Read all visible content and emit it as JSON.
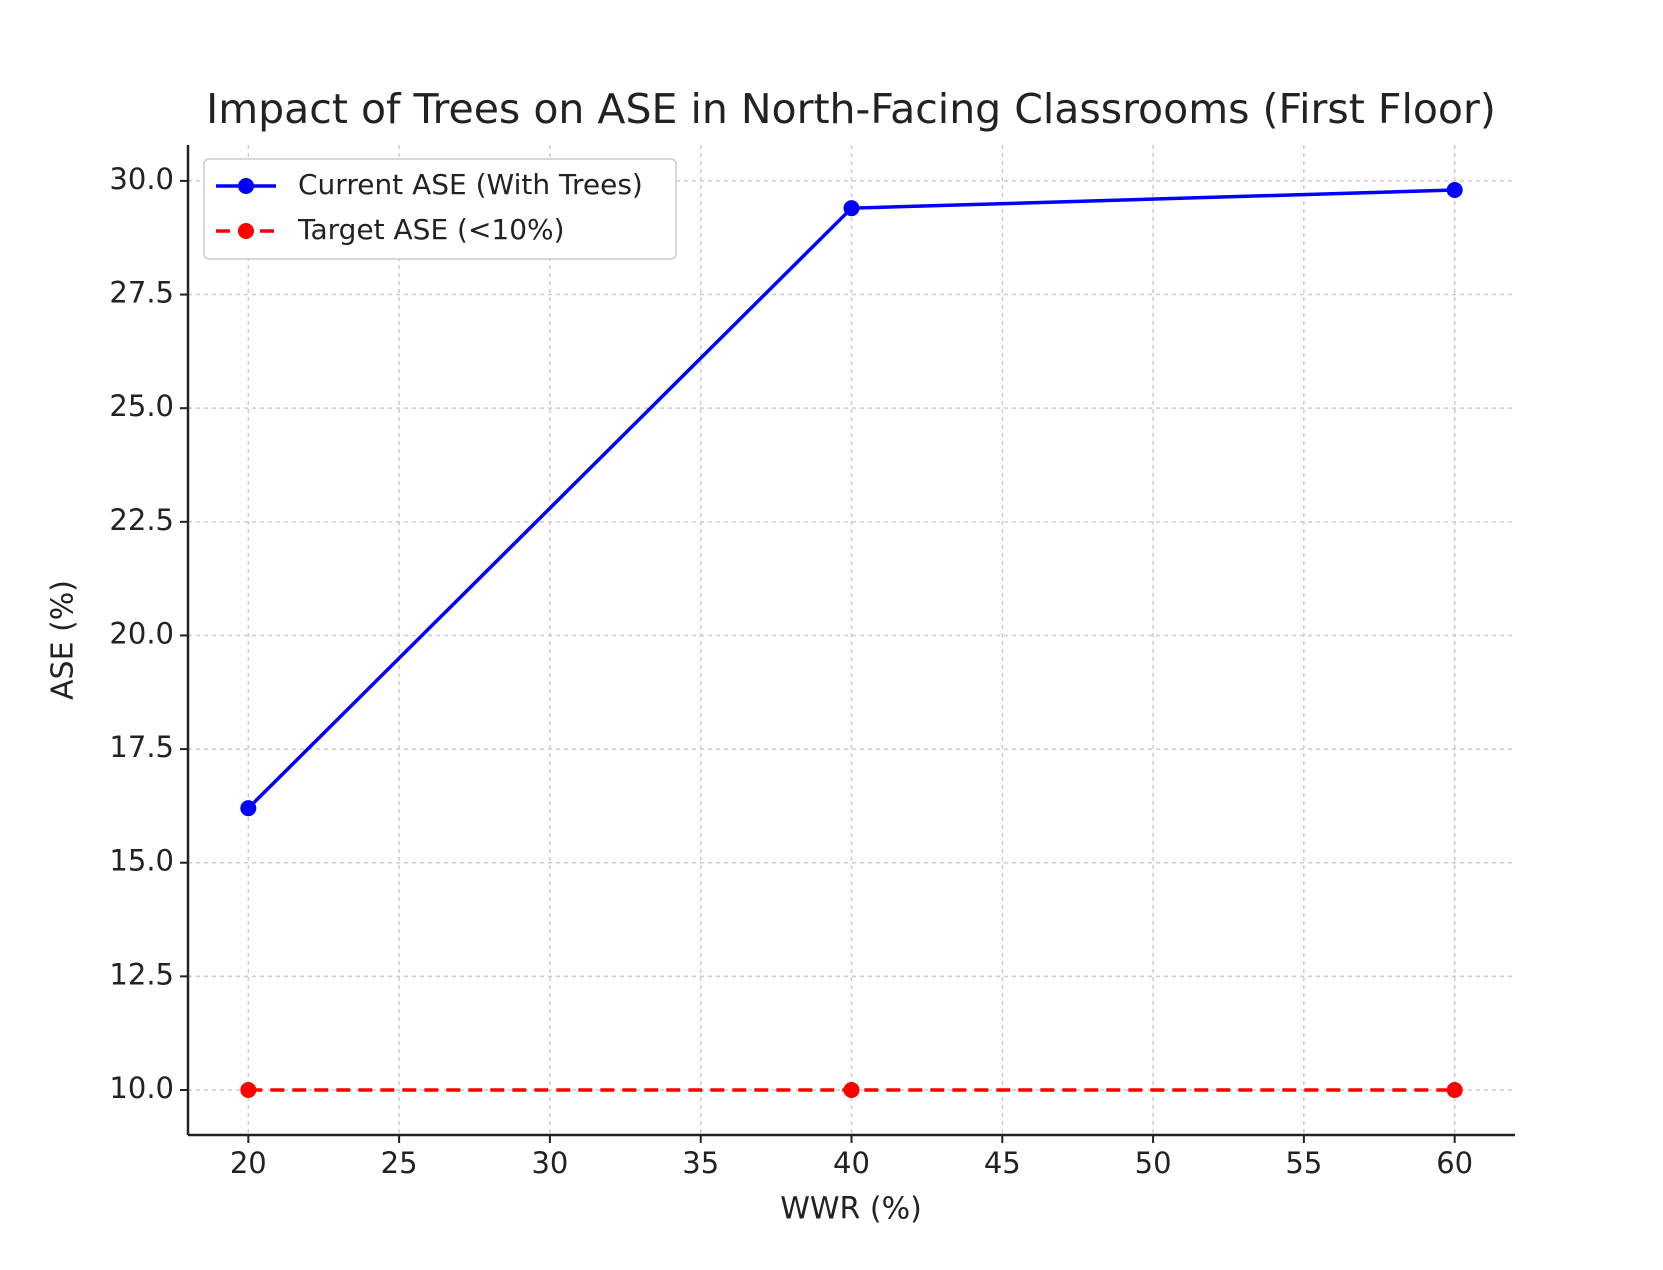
{
  "chart_data": {
    "type": "line",
    "title": "Impact of Trees on ASE in North-Facing Classrooms (First Floor)",
    "x_label": "WWR (%)",
    "y_label": "ASE (%)",
    "x": [
      20,
      40,
      60
    ],
    "series": [
      {
        "name": "Current ASE (With Trees)",
        "color": "#0000ff",
        "dash": "solid",
        "values": [
          16.2,
          29.4,
          29.8
        ]
      },
      {
        "name": "Target ASE (<10%)",
        "color": "#ff0000",
        "dash": "dashed",
        "values": [
          10,
          10,
          10
        ]
      }
    ],
    "xlim": [
      18,
      62
    ],
    "ylim": [
      9.01,
      30.79
    ],
    "xticks": [
      20,
      25,
      30,
      35,
      40,
      45,
      50,
      55,
      60
    ],
    "yticks": [
      {
        "value": 10,
        "label": "10.0"
      },
      12.5,
      {
        "value": 15,
        "label": "15.0"
      },
      17.5,
      {
        "value": 20,
        "label": "20.0"
      },
      22.5,
      {
        "value": 25,
        "label": "25.0"
      },
      27.5,
      {
        "value": 30,
        "label": "30.0"
      }
    ],
    "grid": true,
    "legend": "upper left"
  }
}
